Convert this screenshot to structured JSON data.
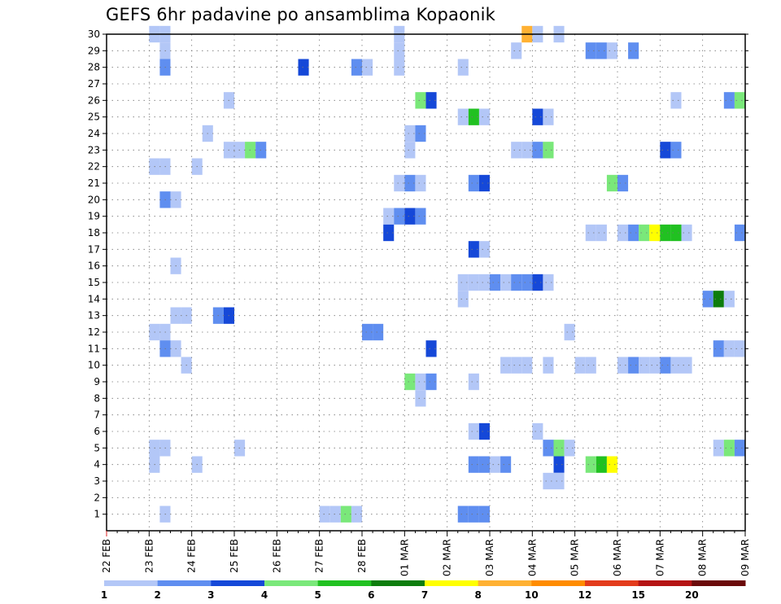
{
  "chart_data": {
    "type": "heatmap",
    "title": "GEFS 6hr padavine po ansamblima Kopaonik",
    "xlabel": "",
    "ylabel": "",
    "x_ticks": [
      "22 FEB",
      "23 FEB",
      "24 FEB",
      "25 FEB",
      "26 FEB",
      "27 FEB",
      "28 FEB",
      "01 MAR",
      "02 MAR",
      "03 MAR",
      "04 MAR",
      "05 MAR",
      "06 MAR",
      "07 MAR",
      "08 MAR",
      "09 MAR"
    ],
    "y_ticks": [
      "1",
      "2",
      "3",
      "4",
      "5",
      "6",
      "7",
      "8",
      "9",
      "10",
      "11",
      "12",
      "13",
      "14",
      "15",
      "16",
      "17",
      "18",
      "19",
      "20",
      "21",
      "22",
      "23",
      "24",
      "25",
      "26",
      "27",
      "28",
      "29",
      "30"
    ],
    "x_range": [
      0,
      60
    ],
    "y_range": [
      0,
      30
    ],
    "grid": "dotted",
    "colorbar": {
      "labels": [
        "1",
        "2",
        "3",
        "4",
        "5",
        "6",
        "7",
        "8",
        "10",
        "12",
        "15",
        "20"
      ],
      "colors": [
        "#b3c7f7",
        "#5f8ef0",
        "#1548d8",
        "#7ae87a",
        "#21c121",
        "#0d7d0d",
        "#ffff00",
        "#ffb133",
        "#ff8c00",
        "#e33b1c",
        "#b51414",
        "#6b0a0a"
      ]
    },
    "cells_note": "x = 6h step index from 22 FEB 00Z, y = ensemble member, l = precipitation class (1 lightest)",
    "cells": [
      {
        "x": 4.5,
        "y": 30,
        "l": 1
      },
      {
        "x": 5.5,
        "y": 30,
        "l": 1
      },
      {
        "x": 27.5,
        "y": 30,
        "l": 1
      },
      {
        "x": 39.5,
        "y": 30,
        "l": 8
      },
      {
        "x": 40.5,
        "y": 30,
        "l": 1
      },
      {
        "x": 42.5,
        "y": 30,
        "l": 1
      },
      {
        "x": 5.5,
        "y": 29,
        "l": 1
      },
      {
        "x": 27.5,
        "y": 29,
        "l": 1
      },
      {
        "x": 38.5,
        "y": 29,
        "l": 1
      },
      {
        "x": 45.5,
        "y": 29,
        "l": 2
      },
      {
        "x": 46.5,
        "y": 29,
        "l": 2
      },
      {
        "x": 47.5,
        "y": 29,
        "l": 1
      },
      {
        "x": 49.5,
        "y": 29,
        "l": 2
      },
      {
        "x": 5.5,
        "y": 28,
        "l": 2
      },
      {
        "x": 18.5,
        "y": 28,
        "l": 3
      },
      {
        "x": 23.5,
        "y": 28,
        "l": 2
      },
      {
        "x": 24.5,
        "y": 28,
        "l": 1
      },
      {
        "x": 27.5,
        "y": 28,
        "l": 1
      },
      {
        "x": 33.5,
        "y": 28,
        "l": 1
      },
      {
        "x": 11.5,
        "y": 26,
        "l": 1
      },
      {
        "x": 29.5,
        "y": 26,
        "l": 4
      },
      {
        "x": 30.5,
        "y": 26,
        "l": 3
      },
      {
        "x": 53.5,
        "y": 26,
        "l": 1
      },
      {
        "x": 58.5,
        "y": 26,
        "l": 2
      },
      {
        "x": 59.5,
        "y": 26,
        "l": 4
      },
      {
        "x": 60.5,
        "y": 26,
        "l": 3
      },
      {
        "x": 33.5,
        "y": 25,
        "l": 1
      },
      {
        "x": 34.5,
        "y": 25,
        "l": 5
      },
      {
        "x": 35.5,
        "y": 25,
        "l": 1
      },
      {
        "x": 40.5,
        "y": 25,
        "l": 3
      },
      {
        "x": 41.5,
        "y": 25,
        "l": 1
      },
      {
        "x": 9.5,
        "y": 24,
        "l": 1
      },
      {
        "x": 28.5,
        "y": 24,
        "l": 1
      },
      {
        "x": 29.5,
        "y": 24,
        "l": 2
      },
      {
        "x": 11.5,
        "y": 23,
        "l": 1
      },
      {
        "x": 12.5,
        "y": 23,
        "l": 1
      },
      {
        "x": 13.5,
        "y": 23,
        "l": 4
      },
      {
        "x": 14.5,
        "y": 23,
        "l": 2
      },
      {
        "x": 28.5,
        "y": 23,
        "l": 1
      },
      {
        "x": 38.5,
        "y": 23,
        "l": 1
      },
      {
        "x": 39.5,
        "y": 23,
        "l": 1
      },
      {
        "x": 40.5,
        "y": 23,
        "l": 2
      },
      {
        "x": 41.5,
        "y": 23,
        "l": 4
      },
      {
        "x": 52.5,
        "y": 23,
        "l": 3
      },
      {
        "x": 53.5,
        "y": 23,
        "l": 2
      },
      {
        "x": 4.5,
        "y": 22,
        "l": 1
      },
      {
        "x": 5.5,
        "y": 22,
        "l": 1
      },
      {
        "x": 8.5,
        "y": 22,
        "l": 1
      },
      {
        "x": 27.5,
        "y": 21,
        "l": 1
      },
      {
        "x": 28.5,
        "y": 21,
        "l": 2
      },
      {
        "x": 29.5,
        "y": 21,
        "l": 1
      },
      {
        "x": 34.5,
        "y": 21,
        "l": 2
      },
      {
        "x": 35.5,
        "y": 21,
        "l": 3
      },
      {
        "x": 47.5,
        "y": 21,
        "l": 4
      },
      {
        "x": 48.5,
        "y": 21,
        "l": 2
      },
      {
        "x": 5.5,
        "y": 20,
        "l": 2
      },
      {
        "x": 6.5,
        "y": 20,
        "l": 1
      },
      {
        "x": 26.5,
        "y": 19,
        "l": 1
      },
      {
        "x": 27.5,
        "y": 19,
        "l": 2
      },
      {
        "x": 28.5,
        "y": 19,
        "l": 3
      },
      {
        "x": 29.5,
        "y": 19,
        "l": 2
      },
      {
        "x": 26.5,
        "y": 18,
        "l": 3
      },
      {
        "x": 45.5,
        "y": 18,
        "l": 1
      },
      {
        "x": 46.5,
        "y": 18,
        "l": 1
      },
      {
        "x": 48.5,
        "y": 18,
        "l": 1
      },
      {
        "x": 49.5,
        "y": 18,
        "l": 2
      },
      {
        "x": 50.5,
        "y": 18,
        "l": 4
      },
      {
        "x": 51.5,
        "y": 18,
        "l": 7
      },
      {
        "x": 52.5,
        "y": 18,
        "l": 5
      },
      {
        "x": 53.5,
        "y": 18,
        "l": 5
      },
      {
        "x": 54.5,
        "y": 18,
        "l": 1
      },
      {
        "x": 59.5,
        "y": 18,
        "l": 2
      },
      {
        "x": 60.5,
        "y": 18,
        "l": 1
      },
      {
        "x": 34.5,
        "y": 17,
        "l": 3
      },
      {
        "x": 35.5,
        "y": 17,
        "l": 1
      },
      {
        "x": 6.5,
        "y": 16,
        "l": 1
      },
      {
        "x": 33.5,
        "y": 15,
        "l": 1
      },
      {
        "x": 34.5,
        "y": 15,
        "l": 1
      },
      {
        "x": 35.5,
        "y": 15,
        "l": 1
      },
      {
        "x": 36.5,
        "y": 15,
        "l": 2
      },
      {
        "x": 37.5,
        "y": 15,
        "l": 1
      },
      {
        "x": 38.5,
        "y": 15,
        "l": 2
      },
      {
        "x": 39.5,
        "y": 15,
        "l": 2
      },
      {
        "x": 40.5,
        "y": 15,
        "l": 3
      },
      {
        "x": 41.5,
        "y": 15,
        "l": 1
      },
      {
        "x": 33.5,
        "y": 14,
        "l": 1
      },
      {
        "x": 56.5,
        "y": 14,
        "l": 2
      },
      {
        "x": 57.5,
        "y": 14,
        "l": 6
      },
      {
        "x": 58.5,
        "y": 14,
        "l": 1
      },
      {
        "x": 6.5,
        "y": 13,
        "l": 1
      },
      {
        "x": 7.5,
        "y": 13,
        "l": 1
      },
      {
        "x": 10.5,
        "y": 13,
        "l": 2
      },
      {
        "x": 11.5,
        "y": 13,
        "l": 3
      },
      {
        "x": 4.5,
        "y": 12,
        "l": 1
      },
      {
        "x": 5.5,
        "y": 12,
        "l": 1
      },
      {
        "x": 24.5,
        "y": 12,
        "l": 2
      },
      {
        "x": 25.5,
        "y": 12,
        "l": 2
      },
      {
        "x": 43.5,
        "y": 12,
        "l": 1
      },
      {
        "x": 5.5,
        "y": 11,
        "l": 2
      },
      {
        "x": 6.5,
        "y": 11,
        "l": 1
      },
      {
        "x": 30.5,
        "y": 11,
        "l": 3
      },
      {
        "x": 57.5,
        "y": 11,
        "l": 2
      },
      {
        "x": 58.5,
        "y": 11,
        "l": 1
      },
      {
        "x": 59.5,
        "y": 11,
        "l": 1
      },
      {
        "x": 7.5,
        "y": 10,
        "l": 1
      },
      {
        "x": 37.5,
        "y": 10,
        "l": 1
      },
      {
        "x": 38.5,
        "y": 10,
        "l": 1
      },
      {
        "x": 39.5,
        "y": 10,
        "l": 1
      },
      {
        "x": 41.5,
        "y": 10,
        "l": 1
      },
      {
        "x": 44.5,
        "y": 10,
        "l": 1
      },
      {
        "x": 45.5,
        "y": 10,
        "l": 1
      },
      {
        "x": 48.5,
        "y": 10,
        "l": 1
      },
      {
        "x": 49.5,
        "y": 10,
        "l": 2
      },
      {
        "x": 50.5,
        "y": 10,
        "l": 1
      },
      {
        "x": 51.5,
        "y": 10,
        "l": 1
      },
      {
        "x": 52.5,
        "y": 10,
        "l": 2
      },
      {
        "x": 53.5,
        "y": 10,
        "l": 1
      },
      {
        "x": 54.5,
        "y": 10,
        "l": 1
      },
      {
        "x": 28.5,
        "y": 9,
        "l": 4
      },
      {
        "x": 29.5,
        "y": 9,
        "l": 1
      },
      {
        "x": 30.5,
        "y": 9,
        "l": 2
      },
      {
        "x": 34.5,
        "y": 9,
        "l": 1
      },
      {
        "x": 29.5,
        "y": 8,
        "l": 1
      },
      {
        "x": 34.5,
        "y": 6,
        "l": 1
      },
      {
        "x": 35.5,
        "y": 6,
        "l": 3
      },
      {
        "x": 40.5,
        "y": 6,
        "l": 1
      },
      {
        "x": 4.5,
        "y": 5,
        "l": 1
      },
      {
        "x": 5.5,
        "y": 5,
        "l": 1
      },
      {
        "x": 12.5,
        "y": 5,
        "l": 1
      },
      {
        "x": 41.5,
        "y": 5,
        "l": 2
      },
      {
        "x": 42.5,
        "y": 5,
        "l": 4
      },
      {
        "x": 43.5,
        "y": 5,
        "l": 1
      },
      {
        "x": 57.5,
        "y": 5,
        "l": 1
      },
      {
        "x": 58.5,
        "y": 5,
        "l": 4
      },
      {
        "x": 59.5,
        "y": 5,
        "l": 2
      },
      {
        "x": 60.5,
        "y": 5,
        "l": 5
      },
      {
        "x": 4.5,
        "y": 4,
        "l": 1
      },
      {
        "x": 8.5,
        "y": 4,
        "l": 1
      },
      {
        "x": 34.5,
        "y": 4,
        "l": 2
      },
      {
        "x": 35.5,
        "y": 4,
        "l": 2
      },
      {
        "x": 36.5,
        "y": 4,
        "l": 1
      },
      {
        "x": 37.5,
        "y": 4,
        "l": 2
      },
      {
        "x": 42.5,
        "y": 4,
        "l": 3
      },
      {
        "x": 45.5,
        "y": 4,
        "l": 4
      },
      {
        "x": 46.5,
        "y": 4,
        "l": 5
      },
      {
        "x": 47.5,
        "y": 4,
        "l": 7
      },
      {
        "x": 41.5,
        "y": 3,
        "l": 1
      },
      {
        "x": 42.5,
        "y": 3,
        "l": 1
      },
      {
        "x": 60.5,
        "y": 3,
        "l": 1
      },
      {
        "x": 5.5,
        "y": 1,
        "l": 1
      },
      {
        "x": 20.5,
        "y": 1,
        "l": 1
      },
      {
        "x": 21.5,
        "y": 1,
        "l": 1
      },
      {
        "x": 22.5,
        "y": 1,
        "l": 4
      },
      {
        "x": 23.5,
        "y": 1,
        "l": 1
      },
      {
        "x": 33.5,
        "y": 1,
        "l": 2
      },
      {
        "x": 34.5,
        "y": 1,
        "l": 2
      },
      {
        "x": 35.5,
        "y": 1,
        "l": 2
      }
    ]
  }
}
